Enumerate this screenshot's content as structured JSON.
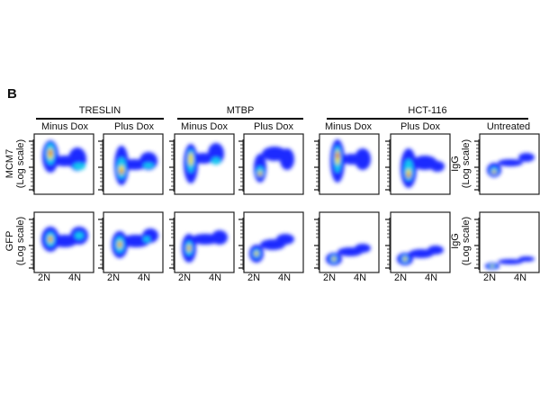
{
  "panel_label": "B",
  "groups": [
    {
      "label": "TRESLIN"
    },
    {
      "label": "MTBP"
    },
    {
      "label": "HCT-116"
    }
  ],
  "columns": [
    "Minus Dox",
    "Plus Dox",
    "Minus Dox",
    "Plus Dox",
    "Minus Dox",
    "Plus Dox",
    "Untreated"
  ],
  "row_labels": {
    "mcm7": [
      "MCM7",
      "(Log scale)"
    ],
    "gfp": [
      "GFP",
      "(Log scale)"
    ],
    "igg": [
      "IgG",
      "(Log scale)"
    ]
  },
  "x_ticks": [
    "2N",
    "4N"
  ],
  "colors": {
    "low": "#1a2cff",
    "mid": "#19c8f0",
    "high": "#f0e000",
    "peak": "#e01010"
  }
}
